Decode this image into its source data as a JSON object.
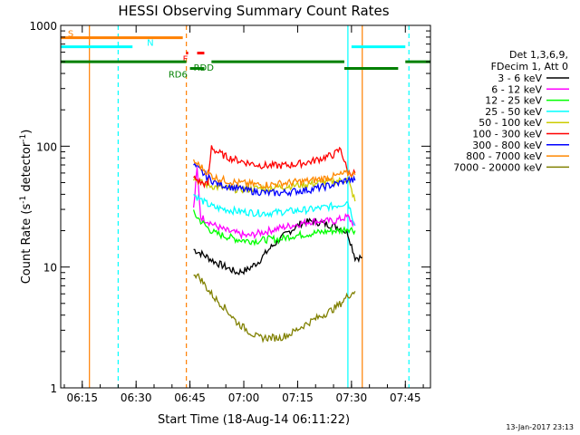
{
  "chart_data": {
    "type": "line",
    "title": "HESSI Observing Summary Count Rates",
    "xlabel": "Start Time (18-Aug-14 06:11:22)",
    "ylabel": "Count Rate (s",
    "ylabel_sup": "-1",
    "ylabel_tail": " detector",
    "ylabel_close": ")",
    "y_scale": "log",
    "ylim": [
      1,
      1000
    ],
    "xlim": [
      "06:09",
      "07:52"
    ],
    "x_ticks": [
      {
        "t": "06:15",
        "label": "06:15"
      },
      {
        "t": "06:30",
        "label": "06:30"
      },
      {
        "t": "06:45",
        "label": "06:45"
      },
      {
        "t": "07:00",
        "label": "07:00"
      },
      {
        "t": "07:15",
        "label": "07:15"
      },
      {
        "t": "07:30",
        "label": "07:30"
      },
      {
        "t": "07:45",
        "label": "07:45"
      }
    ],
    "y_ticks": [
      {
        "v": 1,
        "label": "1"
      },
      {
        "v": 10,
        "label": "10"
      },
      {
        "v": 100,
        "label": "100"
      },
      {
        "v": 1000,
        "label": "1000"
      }
    ],
    "legend_header": [
      "Det 1,3,6,9,",
      "FDecim 1, Att 0"
    ],
    "legend_position": "right",
    "series": [
      {
        "name": "3 - 6 keV",
        "color": "#000000",
        "x": [
          "06:46",
          "06:48",
          "06:50",
          "06:52",
          "06:55",
          "06:58",
          "07:01",
          "07:04",
          "07:07",
          "07:10",
          "07:13",
          "07:16",
          "07:19",
          "07:22",
          "07:25",
          "07:27",
          "07:29",
          "07:31",
          "07:33"
        ],
        "y": [
          14,
          13,
          12,
          11,
          10,
          9,
          9.5,
          11,
          14,
          17,
          20,
          23,
          24,
          23,
          22,
          21,
          19,
          12,
          12
        ]
      },
      {
        "name": "6 - 12 keV",
        "color": "#ff00ff",
        "x": [
          "06:46",
          "06:47",
          "06:48",
          "06:50",
          "06:52",
          "06:55",
          "06:58",
          "07:01",
          "07:04",
          "07:07",
          "07:10",
          "07:13",
          "07:16",
          "07:19",
          "07:22",
          "07:25",
          "07:27",
          "07:29",
          "07:31"
        ],
        "y": [
          30,
          65,
          26,
          24,
          22,
          20,
          19,
          18,
          19,
          20,
          21,
          22,
          23,
          24,
          24,
          24,
          25,
          26,
          22
        ]
      },
      {
        "name": "12 - 25 keV",
        "color": "#00ff00",
        "x": [
          "06:46",
          "06:48",
          "06:50",
          "06:52",
          "06:55",
          "06:58",
          "07:01",
          "07:04",
          "07:07",
          "07:10",
          "07:13",
          "07:16",
          "07:19",
          "07:22",
          "07:25",
          "07:27",
          "07:29",
          "07:31"
        ],
        "y": [
          28,
          24,
          21,
          19,
          18,
          17,
          16.5,
          16.5,
          17,
          17,
          18,
          18.5,
          19,
          19.5,
          20,
          20,
          21,
          20
        ]
      },
      {
        "name": "25 - 50 keV",
        "color": "#00ffff",
        "x": [
          "06:46",
          "06:48",
          "06:50",
          "06:52",
          "06:55",
          "06:58",
          "07:01",
          "07:04",
          "07:07",
          "07:10",
          "07:13",
          "07:16",
          "07:19",
          "07:22",
          "07:25",
          "07:27",
          "07:29",
          "07:31"
        ],
        "y": [
          40,
          36,
          33,
          31,
          30,
          29,
          28.5,
          28,
          28,
          28.5,
          29,
          29.5,
          30,
          31,
          32,
          33,
          35,
          22
        ]
      },
      {
        "name": "50 - 100 keV",
        "color": "#cccc00",
        "x": [
          "06:46",
          "06:48",
          "06:50",
          "06:52",
          "06:55",
          "06:58",
          "07:01",
          "07:04",
          "07:07",
          "07:10",
          "07:13",
          "07:16",
          "07:19",
          "07:22",
          "07:25",
          "07:27",
          "07:29",
          "07:31"
        ],
        "y": [
          55,
          50,
          48,
          46,
          45,
          44,
          44,
          45,
          45,
          46,
          47,
          48,
          49,
          50,
          51,
          52,
          53,
          35
        ]
      },
      {
        "name": "100 - 300 keV",
        "color": "#ff0000",
        "x": [
          "06:46",
          "06:48",
          "06:50",
          "06:51",
          "06:52",
          "06:55",
          "06:58",
          "07:01",
          "07:04",
          "07:07",
          "07:10",
          "07:13",
          "07:16",
          "07:19",
          "07:22",
          "07:25",
          "07:27",
          "07:29",
          "07:31"
        ],
        "y": [
          55,
          50,
          48,
          100,
          92,
          82,
          77,
          73,
          70,
          69,
          69,
          70,
          72,
          75,
          80,
          85,
          95,
          60,
          60
        ]
      },
      {
        "name": "300 - 800 keV",
        "color": "#0000ff",
        "x": [
          "06:46",
          "06:48",
          "06:50",
          "06:52",
          "06:55",
          "06:58",
          "07:01",
          "07:04",
          "07:07",
          "07:10",
          "07:13",
          "07:16",
          "07:19",
          "07:22",
          "07:25",
          "07:27",
          "07:29",
          "07:31"
        ],
        "y": [
          70,
          62,
          55,
          50,
          47,
          45,
          43,
          42,
          41,
          41,
          42,
          43,
          44,
          46,
          48,
          50,
          53,
          52
        ]
      },
      {
        "name": "800 - 7000 keV",
        "color": "#ff8800",
        "x": [
          "06:46",
          "06:48",
          "06:50",
          "06:52",
          "06:55",
          "06:58",
          "07:01",
          "07:04",
          "07:07",
          "07:10",
          "07:13",
          "07:16",
          "07:19",
          "07:22",
          "07:25",
          "07:27",
          "07:29",
          "07:31"
        ],
        "y": [
          75,
          68,
          60,
          55,
          52,
          50,
          49,
          48,
          48,
          49,
          50,
          51,
          52,
          54,
          56,
          58,
          60,
          58
        ]
      },
      {
        "name": "7000 - 20000 keV",
        "color": "#808000",
        "x": [
          "06:46",
          "06:48",
          "06:50",
          "06:52",
          "06:55",
          "06:58",
          "07:01",
          "07:04",
          "07:07",
          "07:10",
          "07:13",
          "07:16",
          "07:19",
          "07:22",
          "07:25",
          "07:27",
          "07:29",
          "07:31"
        ],
        "y": [
          9,
          8,
          6.5,
          5.5,
          4.5,
          3.5,
          3,
          2.6,
          2.6,
          2.6,
          2.8,
          3.2,
          3.6,
          4,
          4.5,
          5,
          5.8,
          6.3
        ]
      }
    ],
    "state_bars": [
      {
        "label": "S",
        "color": "#ff8000",
        "start": "06:09",
        "end": "06:43",
        "level": 790,
        "label_at": "06:11"
      },
      {
        "label": "N",
        "color": "#00ffff",
        "start": "06:09",
        "end": "06:29",
        "level": 665,
        "label_at": "06:33"
      },
      {
        "label": "N",
        "color": "#00ffff",
        "start": "07:30",
        "end": "07:45",
        "level": 665,
        "label_at": ""
      },
      {
        "label": "F",
        "color": "#ff0000",
        "start": "06:44",
        "end": "06:44",
        "level": 590,
        "label_at": "06:43"
      },
      {
        "label": "",
        "color": "#ff0000",
        "start": "06:47",
        "end": "06:49",
        "level": 590,
        "label_at": ""
      },
      {
        "label": "RDD",
        "color": "#008000",
        "start": "06:09",
        "end": "06:44",
        "level": 500,
        "label_at": "06:46"
      },
      {
        "label": "",
        "color": "#008000",
        "start": "06:51",
        "end": "07:28",
        "level": 500,
        "label_at": ""
      },
      {
        "label": "",
        "color": "#008000",
        "start": "07:45",
        "end": "07:52",
        "level": 500,
        "label_at": ""
      },
      {
        "label": "RD6",
        "color": "#008000",
        "start": "06:45",
        "end": "06:49",
        "level": 440,
        "label_at": "06:39"
      },
      {
        "label": "",
        "color": "#008000",
        "start": "07:28",
        "end": "07:43",
        "level": 440,
        "label_at": ""
      }
    ],
    "vertical_markers": [
      {
        "t": "06:17",
        "color": "#ff8000",
        "style": "solid"
      },
      {
        "t": "06:25",
        "color": "#00ffff",
        "style": "dashed"
      },
      {
        "t": "06:44",
        "color": "#ff8000",
        "style": "dashed"
      },
      {
        "t": "07:29",
        "color": "#00ffff",
        "style": "solid"
      },
      {
        "t": "07:33",
        "color": "#ff8000",
        "style": "solid"
      },
      {
        "t": "07:46",
        "color": "#00ffff",
        "style": "dashed"
      }
    ],
    "footer_date": "13-Jan-2017 23:13"
  }
}
